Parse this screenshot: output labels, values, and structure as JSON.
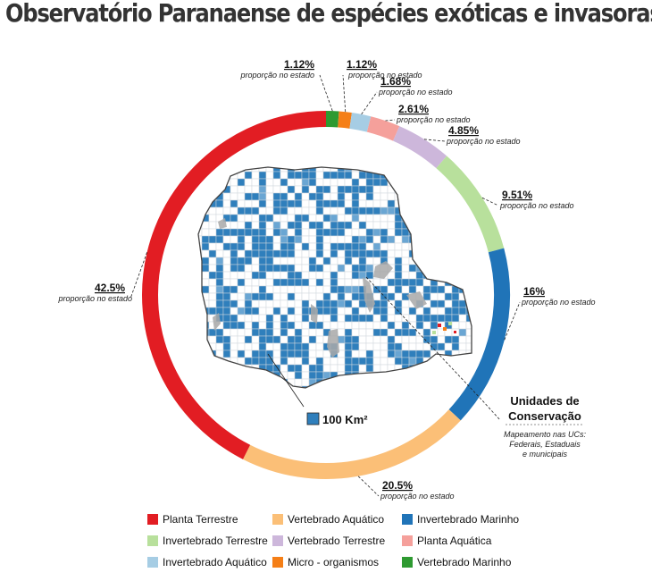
{
  "header": {
    "title": "Observatório Paranaense de espécies exóticas e invasoras"
  },
  "map": {
    "scale_label": "100 Km²",
    "uc_title_line1": "Unidades de",
    "uc_title_line2": "Conservação",
    "uc_sub_line1": "Mapeamento nas UCs:",
    "uc_sub_line2": "Federais, Estaduais",
    "uc_sub_line3": "e municipais",
    "cell_color": "#2f7fbc",
    "uc_color": "#a9a9a9"
  },
  "chart_data": {
    "type": "pie",
    "donut": true,
    "label_suffix": "proporção no estado",
    "slices": [
      {
        "name": "Vertebrado Marinho",
        "value": 1.12,
        "label": "1.12%",
        "color": "#2e9a31"
      },
      {
        "name": "Micro - organismos",
        "value": 1.12,
        "label": "1.12%",
        "color": "#f57f17"
      },
      {
        "name": "Invertebrado Aquático",
        "value": 1.68,
        "label": "1.68%",
        "color": "#a6cde4"
      },
      {
        "name": "Planta Aquática",
        "value": 2.61,
        "label": "2.61%",
        "color": "#f5a09b"
      },
      {
        "name": "Vertebrado Terrestre",
        "value": 4.85,
        "label": "4.85%",
        "color": "#cdb7db"
      },
      {
        "name": "Invertebrado  Terrestre",
        "value": 9.51,
        "label": "9.51%",
        "color": "#b8e09c"
      },
      {
        "name": "Invertebrado Marinho",
        "value": 16,
        "label": "16%",
        "color": "#2074b8"
      },
      {
        "name": "Vertebrado Aquático",
        "value": 20.5,
        "label": "20.5%",
        "color": "#fbbf77"
      },
      {
        "name": "Planta  Terrestre",
        "value": 42.5,
        "label": "42.5%",
        "color": "#e21d23"
      }
    ]
  },
  "legend": [
    {
      "label": "Planta  Terrestre",
      "color": "#e21d23"
    },
    {
      "label": "Vertebrado Aquático",
      "color": "#fbbf77"
    },
    {
      "label": "Invertebrado Marinho",
      "color": "#2074b8"
    },
    {
      "label": "Invertebrado  Terrestre",
      "color": "#b8e09c"
    },
    {
      "label": "Vertebrado Terrestre",
      "color": "#cdb7db"
    },
    {
      "label": "Planta Aquática",
      "color": "#f5a09b"
    },
    {
      "label": "Invertebrado Aquático",
      "color": "#a6cde4"
    },
    {
      "label": "Micro - organismos",
      "color": "#f57f17"
    },
    {
      "label": "Vertebrado Marinho",
      "color": "#2e9a31"
    }
  ]
}
